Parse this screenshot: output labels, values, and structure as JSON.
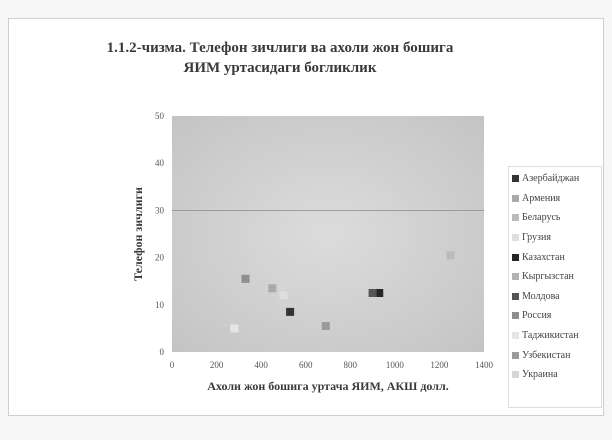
{
  "chart_data": {
    "type": "scatter",
    "title_line1": "1.1.2-чизма. Телефон зичлиги ва ахоли жон бошига",
    "title_line2": "ЯИМ уртасидаги богликлик",
    "xlabel": "Ахоли жон бошига уртача ЯИМ, АКШ долл.",
    "ylabel": "Телефон зичлиги",
    "xlim": [
      0,
      1400
    ],
    "ylim": [
      0,
      50
    ],
    "x_ticks": [
      "0",
      "200",
      "400",
      "600",
      "800",
      "1000",
      "1200",
      "1400"
    ],
    "y_ticks": [
      "0",
      "10",
      "20",
      "30",
      "40",
      "50"
    ],
    "grid_y": [
      30
    ],
    "grid_x": [],
    "legend_position": "right",
    "series": [
      {
        "name": "Азербайджан",
        "color": "#333333",
        "points": [
          [
            530,
            8.5
          ]
        ]
      },
      {
        "name": "Армения",
        "color": "#a9a9a9",
        "points": [
          [
            450,
            13.5
          ]
        ]
      },
      {
        "name": "Беларусь",
        "color": "#bbbbbb",
        "points": [
          [
            1250,
            20.5
          ]
        ]
      },
      {
        "name": "Грузия",
        "color": "#dedede",
        "points": [
          [
            500,
            12
          ]
        ]
      },
      {
        "name": "Казахстан",
        "color": "#262626",
        "points": [
          [
            930,
            12.5
          ]
        ]
      },
      {
        "name": "Кыргызстан",
        "color": "#b3b3b3",
        "points": [
          [
            330,
            15.5
          ]
        ]
      },
      {
        "name": "Молдова",
        "color": "#555555",
        "points": [
          [
            900,
            12.5
          ]
        ]
      },
      {
        "name": "Россия",
        "color": "#8f8f8f",
        "points": [
          [
            330,
            15.5
          ]
        ]
      },
      {
        "name": "Таджикистан",
        "color": "#e6e6e6",
        "points": [
          [
            280,
            5
          ]
        ]
      },
      {
        "name": "Узбекистан",
        "color": "#9a9a9a",
        "points": [
          [
            690,
            5.5
          ]
        ]
      },
      {
        "name": "Украина",
        "color": "#d6d6d6",
        "points": [
          [
            500,
            14
          ]
        ]
      }
    ]
  }
}
